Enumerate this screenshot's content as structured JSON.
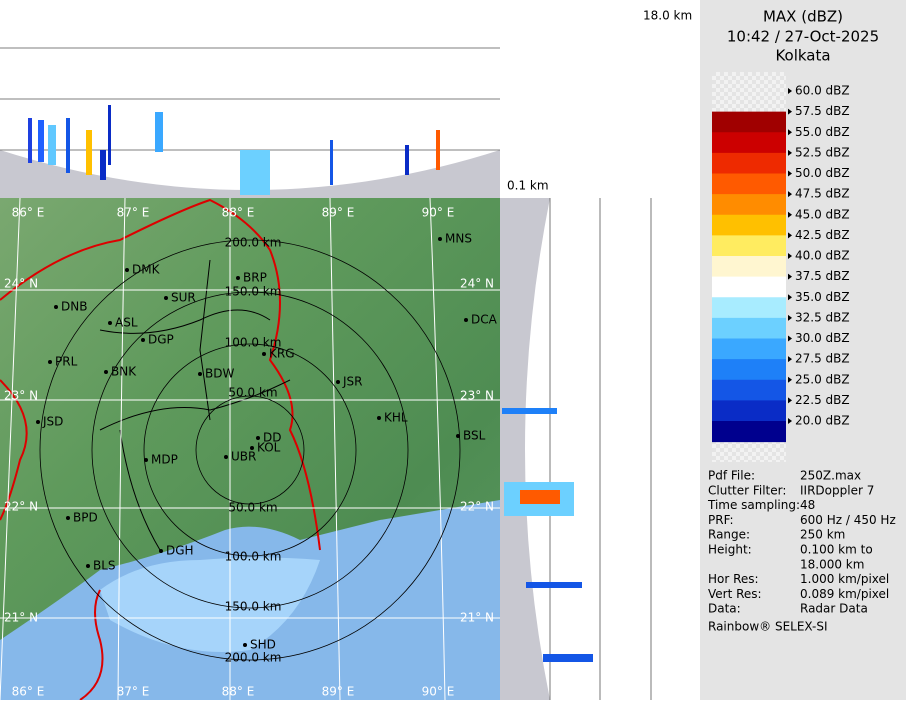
{
  "header": {
    "top_height": "18.0 km",
    "bottom_height": "0.1 km",
    "title": "MAX (dBZ)",
    "time": "10:42 / 27-Oct-2025",
    "station": "Kolkata"
  },
  "legend": {
    "levels": [
      "60.0 dBZ",
      "57.5 dBZ",
      "55.0 dBZ",
      "52.5 dBZ",
      "50.0 dBZ",
      "47.5 dBZ",
      "45.0 dBZ",
      "42.5 dBZ",
      "40.0 dBZ",
      "37.5 dBZ",
      "35.0 dBZ",
      "32.5 dBZ",
      "30.0 dBZ",
      "27.5 dBZ",
      "25.0 dBZ",
      "22.5 dBZ",
      "20.0 dBZ"
    ],
    "band_colors": [
      "#eeeeee",
      "#a00000",
      "#cc0000",
      "#ee2a00",
      "#ff5a00",
      "#ff8c00",
      "#ffc000",
      "#ffec60",
      "#fff6d0",
      "#ffffff",
      "#a8ecff",
      "#6cd0ff",
      "#3aa8ff",
      "#1e80f8",
      "#1456e6",
      "#0a2cc6",
      "#00008e"
    ]
  },
  "map": {
    "lon_labels_top": [
      "86° E",
      "87° E",
      "88° E",
      "89° E",
      "90° E"
    ],
    "lon_labels_bottom": [
      "86° E",
      "87° E",
      "88° E",
      "89° E",
      "90° E"
    ],
    "lat_labels_left": [
      "24° N",
      "23° N",
      "22° N",
      "21° N"
    ],
    "lat_labels_right": [
      "24° N",
      "23° N",
      "22° N",
      "21° N"
    ],
    "range_labels_north": [
      "200.0 km",
      "150.0 km",
      "100.0 km",
      "50.0 km"
    ],
    "range_labels_south": [
      "50.0 km",
      "100.0 km",
      "150.0 km",
      "200.0 km"
    ],
    "cities": [
      "MNS",
      "DMK",
      "BRP",
      "SUR",
      "DNB",
      "ASL",
      "DGP",
      "DCA",
      "KRG",
      "PRL",
      "BNK",
      "BDW",
      "JSR",
      "KHL",
      "JSD",
      "BSL",
      "DD",
      "KOL",
      "MDP",
      "UBR",
      "BPD",
      "DGH",
      "BLS",
      "SHD"
    ]
  },
  "info": {
    "rows": [
      [
        "Pdf File:",
        "250Z.max"
      ],
      [
        "Clutter Filter:",
        "IIRDoppler 7"
      ],
      [
        "Time sampling:",
        "48"
      ],
      [
        "PRF:",
        "600 Hz / 450 Hz"
      ],
      [
        "Range:",
        "250 km"
      ],
      [
        "Height:",
        "0.100 km to"
      ],
      [
        "",
        "18.000 km"
      ],
      [
        "Hor Res:",
        "1.000 km/pixel"
      ],
      [
        "Vert Res:",
        "0.089 km/pixel"
      ],
      [
        "Data:",
        "Radar Data"
      ]
    ],
    "footer": "Rainbow® SELEX-SI"
  }
}
